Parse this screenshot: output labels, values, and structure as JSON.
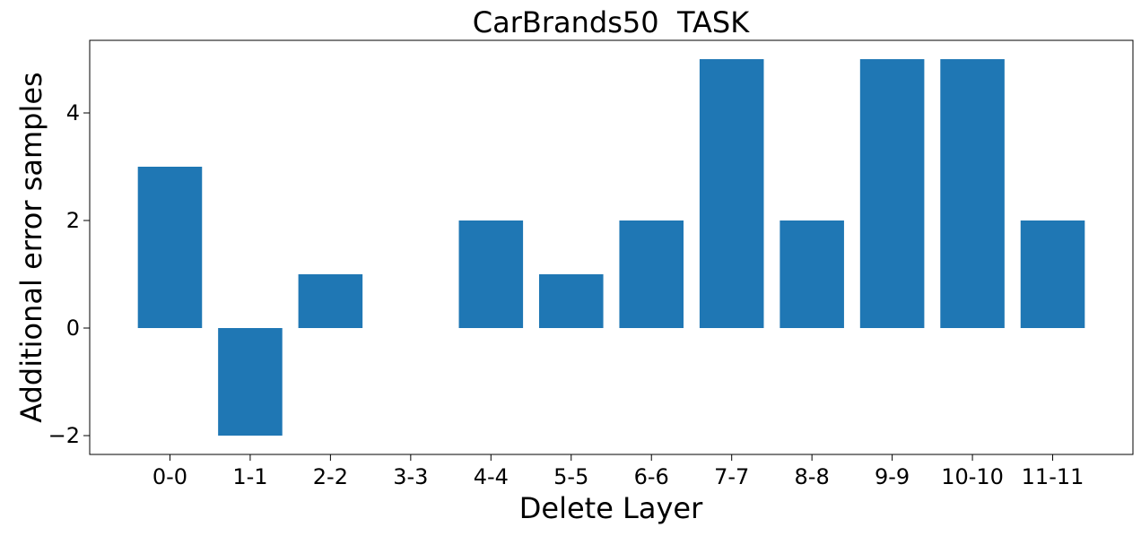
{
  "chart_data": {
    "type": "bar",
    "title": "CarBrands50  TASK",
    "x_label": "Delete Layer",
    "y_label": "Additional error samples",
    "categories": [
      "0-0",
      "1-1",
      "2-2",
      "3-3",
      "4-4",
      "5-5",
      "6-6",
      "7-7",
      "8-8",
      "9-9",
      "10-10",
      "11-11"
    ],
    "values": [
      3,
      -2,
      1,
      0,
      2,
      1,
      2,
      5,
      2,
      5,
      5,
      2
    ],
    "color": "#1f77b4",
    "ylim": [
      -2.35,
      5.35
    ],
    "yticks": [
      {
        "value": -2,
        "label": "−2"
      },
      0,
      2,
      4
    ],
    "grid": false
  }
}
